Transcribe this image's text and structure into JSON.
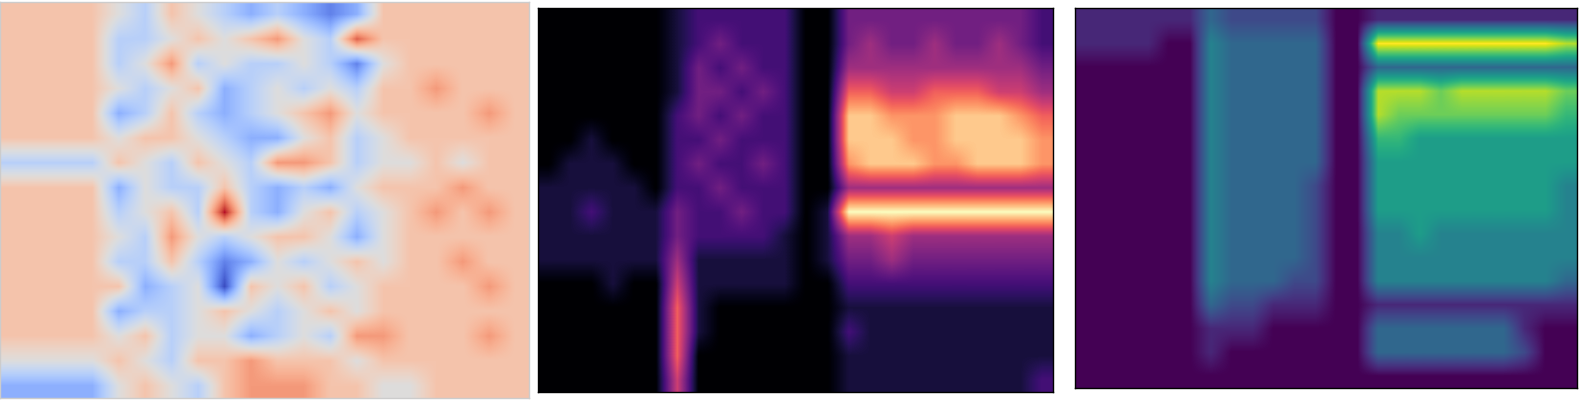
{
  "chart_data": [
    {
      "type": "heatmap",
      "color": "coolwarm",
      "tick_labels": false,
      "cells": [
        [
          1,
          1,
          1,
          1,
          0,
          -1,
          1,
          0,
          -1,
          -2,
          -1,
          -2,
          -3,
          -2,
          1,
          1,
          1,
          1,
          1,
          1
        ],
        [
          1,
          1,
          1,
          1,
          -1,
          -1,
          0,
          1,
          0,
          1,
          2,
          0,
          -1,
          3,
          1,
          1,
          1,
          1,
          1,
          1
        ],
        [
          1,
          1,
          1,
          1,
          -1,
          0,
          2,
          -1,
          0,
          -1,
          -1,
          0,
          -1,
          -3,
          0,
          1,
          1,
          1,
          1,
          1
        ],
        [
          1,
          1,
          1,
          1,
          0,
          -1,
          0,
          1,
          -2,
          -1,
          0,
          -1,
          0,
          -1,
          1,
          1,
          2,
          1,
          1,
          1
        ],
        [
          1,
          1,
          1,
          1,
          -2,
          -1,
          1,
          -1,
          -2,
          -1,
          0,
          1,
          2,
          0,
          1,
          1,
          1,
          1,
          2,
          1
        ],
        [
          1,
          1,
          1,
          1,
          0,
          1,
          1,
          0,
          -1,
          -2,
          -2,
          0,
          1,
          -1,
          0,
          1,
          1,
          1,
          1,
          1
        ],
        [
          -1,
          -1,
          -1,
          -1,
          1,
          0,
          -1,
          1,
          0,
          -1,
          2,
          2,
          1,
          -1,
          0,
          0,
          1,
          0,
          1,
          1
        ],
        [
          1,
          1,
          1,
          1,
          -2,
          0,
          -1,
          -1,
          1,
          -1,
          -2,
          -1,
          -2,
          0,
          1,
          1,
          1,
          2,
          1,
          1
        ],
        [
          1,
          1,
          1,
          1,
          -1,
          0,
          1,
          -1,
          4,
          -1,
          -2,
          0,
          1,
          -1,
          0,
          1,
          2,
          1,
          2,
          1
        ],
        [
          1,
          1,
          1,
          1,
          0,
          -1,
          2,
          0,
          -1,
          0,
          1,
          1,
          0,
          -2,
          0,
          1,
          1,
          1,
          1,
          1
        ],
        [
          1,
          1,
          1,
          1,
          -1,
          -1,
          1,
          -1,
          -3,
          -2,
          0,
          -1,
          0,
          1,
          0,
          1,
          1,
          2,
          1,
          1
        ],
        [
          1,
          1,
          1,
          1,
          1,
          -2,
          -1,
          0,
          -4,
          1,
          0,
          1,
          -1,
          0,
          1,
          1,
          1,
          1,
          2,
          1
        ],
        [
          1,
          1,
          1,
          1,
          -2,
          -1,
          -1,
          0,
          1,
          0,
          -1,
          0,
          1,
          0,
          1,
          1,
          1,
          1,
          1,
          1
        ],
        [
          1,
          1,
          1,
          1,
          0,
          1,
          -1,
          0,
          0,
          -2,
          -1,
          0,
          -1,
          2,
          2,
          1,
          1,
          1,
          2,
          1
        ],
        [
          0,
          0,
          0,
          0,
          1,
          0,
          -1,
          1,
          1,
          2,
          1,
          1,
          1,
          0,
          1,
          1,
          1,
          1,
          1,
          1
        ],
        [
          -2,
          -2,
          -2,
          -2,
          0,
          1,
          0,
          -1,
          1,
          2,
          2,
          2,
          1,
          1,
          0,
          0,
          1,
          1,
          1,
          1
        ]
      ]
    },
    {
      "type": "heatmap",
      "color": "magma",
      "tick_labels": false,
      "cells": [
        [
          0,
          0,
          0,
          0,
          0,
          0,
          1,
          2,
          2,
          2,
          2,
          2,
          0,
          0,
          3,
          3,
          3,
          3,
          3,
          3,
          3,
          3,
          3,
          2
        ],
        [
          0,
          0,
          0,
          0,
          0,
          0,
          1,
          2,
          3,
          2,
          2,
          2,
          0,
          0,
          3,
          4,
          3,
          3,
          4,
          3,
          3,
          4,
          3,
          2
        ],
        [
          0,
          0,
          0,
          0,
          0,
          0,
          1,
          3,
          2,
          3,
          2,
          2,
          0,
          0,
          4,
          4,
          4,
          4,
          4,
          4,
          4,
          4,
          4,
          3
        ],
        [
          0,
          0,
          0,
          0,
          0,
          0,
          1,
          3,
          3,
          2,
          3,
          2,
          0,
          0,
          6,
          6,
          5,
          5,
          6,
          6,
          6,
          5,
          5,
          4
        ],
        [
          0,
          0,
          0,
          0,
          0,
          0,
          2,
          3,
          2,
          3,
          2,
          2,
          0,
          0,
          8,
          8,
          7,
          7,
          7,
          8,
          8,
          8,
          7,
          6
        ],
        [
          0,
          0,
          1,
          0,
          0,
          0,
          2,
          2,
          3,
          2,
          2,
          2,
          0,
          0,
          8,
          8,
          8,
          7,
          7,
          8,
          8,
          8,
          8,
          7
        ],
        [
          0,
          1,
          1,
          1,
          0,
          0,
          2,
          3,
          2,
          2,
          3,
          2,
          0,
          0,
          7,
          8,
          8,
          8,
          7,
          7,
          8,
          8,
          8,
          7
        ],
        [
          1,
          1,
          1,
          1,
          1,
          0,
          2,
          2,
          3,
          2,
          2,
          2,
          0,
          0,
          4,
          4,
          4,
          4,
          4,
          4,
          4,
          4,
          4,
          4
        ],
        [
          1,
          1,
          2,
          1,
          1,
          1,
          3,
          2,
          2,
          3,
          2,
          2,
          0,
          1,
          9,
          9,
          9,
          9,
          9,
          9,
          9,
          9,
          9,
          9
        ],
        [
          1,
          1,
          1,
          1,
          1,
          1,
          3,
          2,
          2,
          2,
          2,
          1,
          0,
          1,
          4,
          4,
          5,
          4,
          4,
          4,
          4,
          4,
          4,
          4
        ],
        [
          1,
          1,
          1,
          1,
          1,
          1,
          4,
          1,
          1,
          1,
          1,
          1,
          0,
          1,
          3,
          3,
          4,
          3,
          3,
          3,
          3,
          3,
          3,
          3
        ],
        [
          0,
          0,
          0,
          1,
          0,
          0,
          5,
          1,
          1,
          1,
          1,
          1,
          0,
          0,
          2,
          2,
          2,
          2,
          2,
          2,
          2,
          2,
          2,
          2
        ],
        [
          0,
          0,
          0,
          0,
          0,
          0,
          6,
          1,
          0,
          0,
          0,
          0,
          0,
          0,
          1,
          1,
          1,
          1,
          1,
          1,
          1,
          1,
          1,
          1
        ],
        [
          0,
          0,
          0,
          0,
          0,
          0,
          6,
          1,
          0,
          0,
          0,
          0,
          0,
          0,
          2,
          1,
          1,
          1,
          1,
          1,
          1,
          1,
          1,
          1
        ],
        [
          0,
          0,
          0,
          0,
          0,
          0,
          6,
          0,
          0,
          0,
          0,
          0,
          0,
          0,
          1,
          1,
          1,
          1,
          1,
          1,
          1,
          1,
          1,
          1
        ],
        [
          0,
          0,
          0,
          0,
          0,
          0,
          5,
          0,
          0,
          0,
          0,
          0,
          0,
          0,
          1,
          1,
          1,
          1,
          1,
          1,
          1,
          1,
          1,
          2
        ]
      ]
    },
    {
      "type": "heatmap",
      "color": "viridis",
      "tick_labels": false,
      "cells": [
        [
          1,
          1,
          1,
          1,
          1,
          1,
          3,
          2,
          2,
          2,
          2,
          2,
          0,
          0,
          1,
          1,
          1,
          1,
          1,
          1,
          1,
          1,
          1,
          1
        ],
        [
          1,
          1,
          1,
          1,
          0,
          0,
          4,
          3,
          3,
          3,
          3,
          3,
          0,
          0,
          9,
          9,
          9,
          9,
          9,
          9,
          9,
          9,
          9,
          8
        ],
        [
          0,
          0,
          0,
          0,
          0,
          0,
          4,
          3,
          3,
          3,
          3,
          3,
          0,
          0,
          3,
          3,
          3,
          3,
          3,
          3,
          3,
          3,
          3,
          3
        ],
        [
          0,
          0,
          0,
          0,
          0,
          0,
          4,
          3,
          3,
          3,
          3,
          3,
          0,
          0,
          8,
          8,
          8,
          7,
          8,
          8,
          8,
          8,
          8,
          7
        ],
        [
          0,
          0,
          0,
          0,
          0,
          0,
          4,
          3,
          3,
          3,
          3,
          3,
          0,
          0,
          8,
          7,
          7,
          7,
          7,
          7,
          7,
          7,
          7,
          6
        ],
        [
          0,
          0,
          0,
          0,
          0,
          0,
          4,
          3,
          3,
          3,
          3,
          3,
          0,
          0,
          6,
          6,
          5,
          5,
          5,
          5,
          5,
          5,
          5,
          5
        ],
        [
          0,
          0,
          0,
          0,
          0,
          0,
          4,
          3,
          3,
          3,
          3,
          3,
          0,
          0,
          5,
          5,
          5,
          5,
          5,
          5,
          5,
          5,
          5,
          5
        ],
        [
          0,
          0,
          0,
          0,
          0,
          0,
          4,
          3,
          3,
          3,
          3,
          2,
          0,
          0,
          5,
          5,
          5,
          5,
          5,
          5,
          5,
          5,
          5,
          4
        ],
        [
          0,
          0,
          0,
          0,
          0,
          0,
          4,
          3,
          3,
          3,
          3,
          2,
          0,
          0,
          5,
          5,
          5,
          5,
          5,
          5,
          5,
          5,
          5,
          4
        ],
        [
          0,
          0,
          0,
          0,
          0,
          0,
          4,
          3,
          3,
          3,
          3,
          2,
          0,
          0,
          4,
          4,
          5,
          4,
          4,
          4,
          4,
          4,
          4,
          4
        ],
        [
          0,
          0,
          0,
          0,
          0,
          0,
          4,
          3,
          3,
          3,
          3,
          2,
          0,
          0,
          4,
          4,
          4,
          4,
          4,
          4,
          4,
          4,
          4,
          4
        ],
        [
          0,
          0,
          0,
          0,
          0,
          0,
          4,
          3,
          3,
          3,
          2,
          2,
          0,
          0,
          4,
          4,
          4,
          4,
          4,
          4,
          4,
          4,
          4,
          3
        ],
        [
          0,
          0,
          0,
          0,
          0,
          0,
          3,
          2,
          2,
          1,
          1,
          1,
          0,
          0,
          1,
          1,
          1,
          1,
          1,
          1,
          1,
          1,
          1,
          1
        ],
        [
          0,
          0,
          0,
          0,
          0,
          0,
          1,
          1,
          1,
          0,
          0,
          0,
          0,
          0,
          3,
          3,
          3,
          3,
          3,
          3,
          3,
          1,
          0,
          0
        ],
        [
          0,
          0,
          0,
          0,
          0,
          0,
          1,
          0,
          0,
          0,
          0,
          0,
          0,
          0,
          3,
          3,
          3,
          3,
          3,
          3,
          3,
          2,
          0,
          0
        ],
        [
          0,
          0,
          0,
          0,
          0,
          0,
          0,
          0,
          0,
          0,
          0,
          0,
          0,
          0,
          0,
          0,
          0,
          0,
          0,
          0,
          0,
          0,
          0,
          0
        ]
      ]
    }
  ]
}
